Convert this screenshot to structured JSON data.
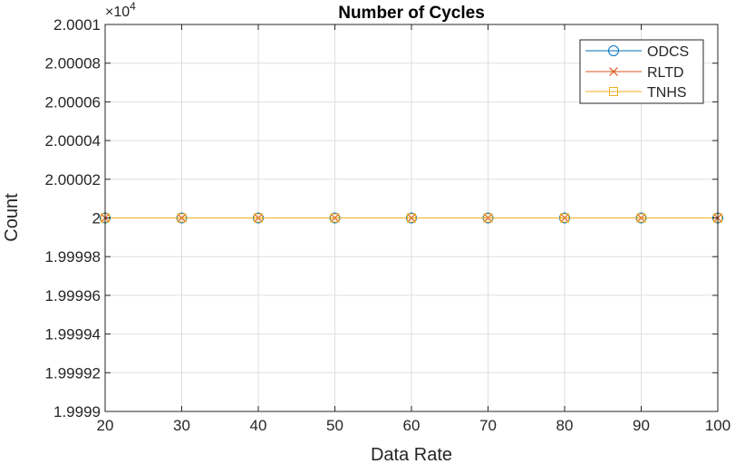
{
  "chart_data": {
    "type": "line",
    "title": "Number of Cycles",
    "xlabel": "Data Rate",
    "ylabel": "Count",
    "x": [
      20,
      30,
      40,
      50,
      60,
      70,
      80,
      90,
      100
    ],
    "xlim": [
      20,
      100
    ],
    "ylim": [
      1.9999,
      2.0001
    ],
    "y_scale_note": {
      "base": "×10",
      "exponent": "4"
    },
    "x_ticks": [
      "20",
      "30",
      "40",
      "50",
      "60",
      "70",
      "80",
      "90",
      "100"
    ],
    "x_tick_values": [
      20,
      30,
      40,
      50,
      60,
      70,
      80,
      90,
      100
    ],
    "y_ticks": [
      "1.9999",
      "1.99992",
      "1.99994",
      "1.99996",
      "1.99998",
      "2",
      "2.00002",
      "2.00004",
      "2.00006",
      "2.00008",
      "2.0001"
    ],
    "y_tick_values": [
      1.9999,
      1.99992,
      1.99994,
      1.99996,
      1.99998,
      2.0,
      2.00002,
      2.00004,
      2.00006,
      2.00008,
      2.0001
    ],
    "grid": true,
    "legend_position": "top-right",
    "series": [
      {
        "name": "ODCS",
        "marker": "circle",
        "color": "#0072BD",
        "values": [
          2,
          2,
          2,
          2,
          2,
          2,
          2,
          2,
          2
        ]
      },
      {
        "name": "RLTD",
        "marker": "x",
        "color": "#D95319",
        "values": [
          2,
          2,
          2,
          2,
          2,
          2,
          2,
          2,
          2
        ]
      },
      {
        "name": "TNHS",
        "marker": "square",
        "color": "#EDB120",
        "values": [
          2,
          2,
          2,
          2,
          2,
          2,
          2,
          2,
          2
        ]
      }
    ]
  }
}
